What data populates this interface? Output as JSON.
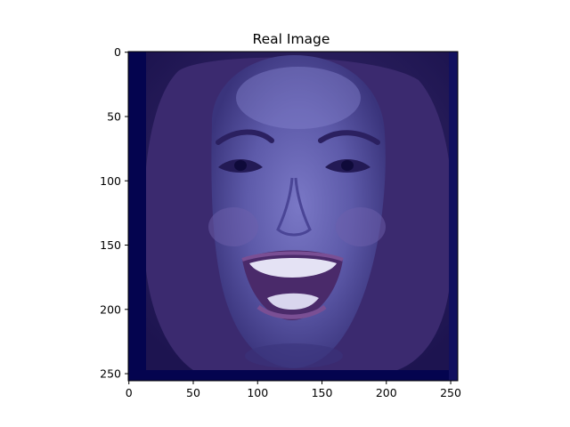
{
  "chart_data": {
    "type": "image",
    "title": "Real Image",
    "image": {
      "width": 256,
      "height": 256,
      "content": "photo-of-smiling-woman-face",
      "tint_color": "#1a1a8c",
      "border_color": "#04044f"
    },
    "x_ticks": [
      0,
      50,
      100,
      150,
      200,
      250
    ],
    "y_ticks": [
      0,
      50,
      100,
      150,
      200,
      250
    ],
    "xlim": [
      0,
      256
    ],
    "ylim": [
      256,
      0
    ],
    "grid": false
  }
}
